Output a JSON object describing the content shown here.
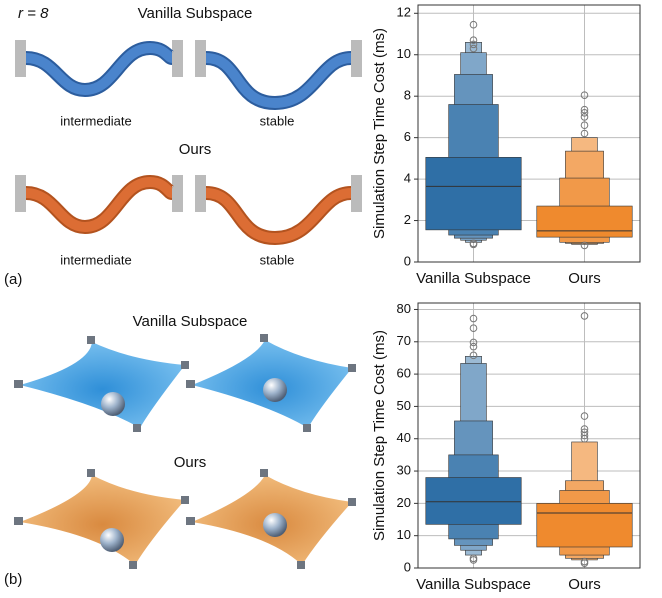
{
  "chart_data": [
    {
      "type": "boxen",
      "ylabel": "Simulation Step Time Cost (ms)",
      "categories": [
        "Vanilla Subspace",
        "Ours"
      ],
      "ylim": [
        0,
        12.4
      ],
      "yticks": [
        0,
        2,
        4,
        6,
        8,
        10,
        12
      ],
      "grid": true,
      "series": [
        {
          "color": "#2f6fa6",
          "median": 3.65,
          "boxes": [
            [
              1.55,
              5.05
            ],
            [
              1.3,
              7.6
            ],
            [
              1.15,
              9.05
            ],
            [
              1.05,
              10.1
            ],
            [
              0.95,
              10.6
            ]
          ],
          "outliers": [
            11.45,
            10.7,
            10.5,
            10.3,
            0.9,
            0.85
          ]
        },
        {
          "color": "#ef8a2e",
          "median": 1.5,
          "boxes": [
            [
              1.2,
              2.7
            ],
            [
              0.95,
              4.05
            ],
            [
              0.9,
              5.35
            ],
            [
              0.85,
              6.0
            ]
          ],
          "outliers": [
            8.05,
            7.35,
            7.2,
            7.0,
            6.6,
            6.2,
            0.8
          ]
        }
      ]
    },
    {
      "type": "boxen",
      "ylabel": "Simulation Step Time Cost (ms)",
      "categories": [
        "Vanilla Subspace",
        "Ours"
      ],
      "ylim": [
        0,
        82
      ],
      "yticks": [
        0,
        10,
        20,
        30,
        40,
        50,
        60,
        70,
        80
      ],
      "grid": true,
      "series": [
        {
          "color": "#2f6fa6",
          "median": 20.5,
          "boxes": [
            [
              13.5,
              28
            ],
            [
              9,
              35
            ],
            [
              7,
              45.5
            ],
            [
              5.5,
              63.3
            ],
            [
              4,
              65.5
            ]
          ],
          "outliers": [
            77.2,
            74.2,
            69.8,
            68.5,
            65.8,
            3,
            2.5
          ]
        },
        {
          "color": "#ef8a2e",
          "median": 17,
          "boxes": [
            [
              6.5,
              20
            ],
            [
              4,
              24
            ],
            [
              3,
              27
            ],
            [
              2.5,
              39
            ]
          ],
          "outliers": [
            78,
            47,
            43,
            42,
            41,
            40,
            2,
            1.5
          ]
        }
      ]
    }
  ],
  "figure": {
    "panel_a": {
      "label": "(a)",
      "rank": "r = 8",
      "rows": [
        {
          "title": "Vanilla Subspace",
          "captions": [
            "intermediate",
            "stable"
          ]
        },
        {
          "title": "Ours",
          "captions": [
            "intermediate",
            "stable"
          ]
        }
      ]
    },
    "panel_b": {
      "label": "(b)",
      "rows": [
        {
          "title": "Vanilla Subspace"
        },
        {
          "title": "Ours"
        }
      ]
    }
  }
}
